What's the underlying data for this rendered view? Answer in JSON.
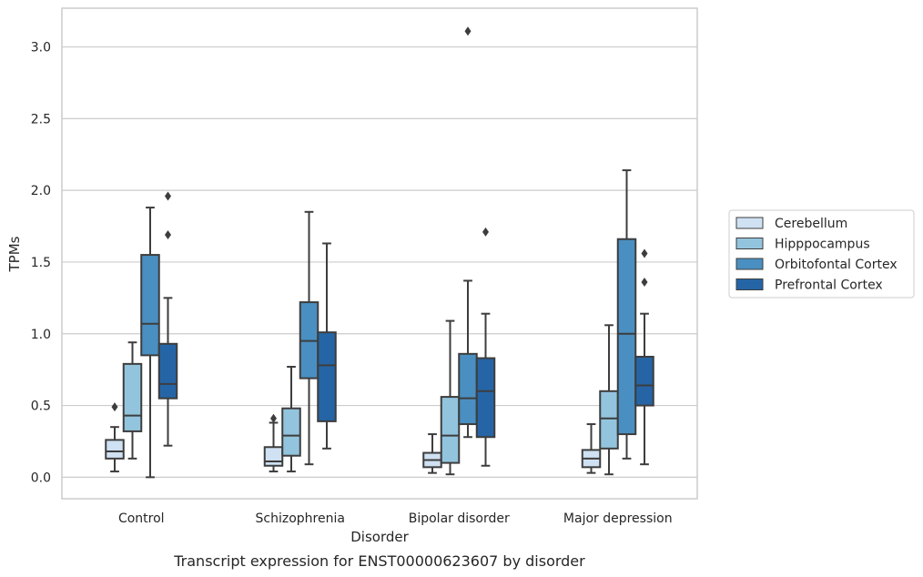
{
  "caption": "Transcript expression for ENST00000623607 by disorder",
  "chart_data": {
    "type": "box",
    "title": "",
    "xlabel": "Disorder",
    "ylabel": "TPMs",
    "categories": [
      "Control",
      "Schizophrenia",
      "Bipolar disorder",
      "Major depression"
    ],
    "ylim": [
      -0.15,
      3.27
    ],
    "yticks": [
      0.0,
      0.5,
      1.0,
      1.5,
      2.0,
      2.5,
      3.0
    ],
    "ytick_labels": [
      "0.0",
      "0.5",
      "1.0",
      "1.5",
      "2.0",
      "2.5",
      "3.0"
    ],
    "grid": "horizontal",
    "legend_position": "right",
    "series": [
      {
        "name": "Cerebellum",
        "color": "#cfe1f2",
        "boxes": [
          {
            "whisker_low": 0.04,
            "q1": 0.13,
            "median": 0.18,
            "q3": 0.26,
            "whisker_high": 0.35,
            "outliers": [
              0.49
            ]
          },
          {
            "whisker_low": 0.04,
            "q1": 0.08,
            "median": 0.11,
            "q3": 0.21,
            "whisker_high": 0.38,
            "outliers": [
              0.41
            ]
          },
          {
            "whisker_low": 0.03,
            "q1": 0.07,
            "median": 0.12,
            "q3": 0.17,
            "whisker_high": 0.3,
            "outliers": []
          },
          {
            "whisker_low": 0.03,
            "q1": 0.07,
            "median": 0.13,
            "q3": 0.19,
            "whisker_high": 0.37,
            "outliers": []
          }
        ]
      },
      {
        "name": "Hipppocampus",
        "color": "#93c4de",
        "boxes": [
          {
            "whisker_low": 0.13,
            "q1": 0.32,
            "median": 0.43,
            "q3": 0.79,
            "whisker_high": 0.94,
            "outliers": []
          },
          {
            "whisker_low": 0.04,
            "q1": 0.15,
            "median": 0.29,
            "q3": 0.48,
            "whisker_high": 0.77,
            "outliers": []
          },
          {
            "whisker_low": 0.02,
            "q1": 0.1,
            "median": 0.29,
            "q3": 0.56,
            "whisker_high": 1.09,
            "outliers": []
          },
          {
            "whisker_low": 0.02,
            "q1": 0.2,
            "median": 0.41,
            "q3": 0.6,
            "whisker_high": 1.06,
            "outliers": []
          }
        ]
      },
      {
        "name": "Orbitofontal Cortex",
        "color": "#4a8fc1",
        "boxes": [
          {
            "whisker_low": 0.0,
            "q1": 0.85,
            "median": 1.07,
            "q3": 1.55,
            "whisker_high": 1.88,
            "outliers": []
          },
          {
            "whisker_low": 0.09,
            "q1": 0.69,
            "median": 0.95,
            "q3": 1.22,
            "whisker_high": 1.85,
            "outliers": []
          },
          {
            "whisker_low": 0.28,
            "q1": 0.37,
            "median": 0.55,
            "q3": 0.86,
            "whisker_high": 1.37,
            "outliers": [
              3.11
            ]
          },
          {
            "whisker_low": 0.13,
            "q1": 0.3,
            "median": 1.0,
            "q3": 1.66,
            "whisker_high": 2.14,
            "outliers": []
          }
        ]
      },
      {
        "name": "Prefrontal Cortex",
        "color": "#2565a6",
        "boxes": [
          {
            "whisker_low": 0.22,
            "q1": 0.55,
            "median": 0.65,
            "q3": 0.93,
            "whisker_high": 1.25,
            "outliers": [
              1.69,
              1.96
            ]
          },
          {
            "whisker_low": 0.2,
            "q1": 0.39,
            "median": 0.78,
            "q3": 1.01,
            "whisker_high": 1.63,
            "outliers": []
          },
          {
            "whisker_low": 0.08,
            "q1": 0.28,
            "median": 0.6,
            "q3": 0.83,
            "whisker_high": 1.14,
            "outliers": [
              1.71
            ]
          },
          {
            "whisker_low": 0.09,
            "q1": 0.5,
            "median": 0.64,
            "q3": 0.84,
            "whisker_high": 1.14,
            "outliers": [
              1.36,
              1.56
            ]
          }
        ]
      }
    ]
  }
}
